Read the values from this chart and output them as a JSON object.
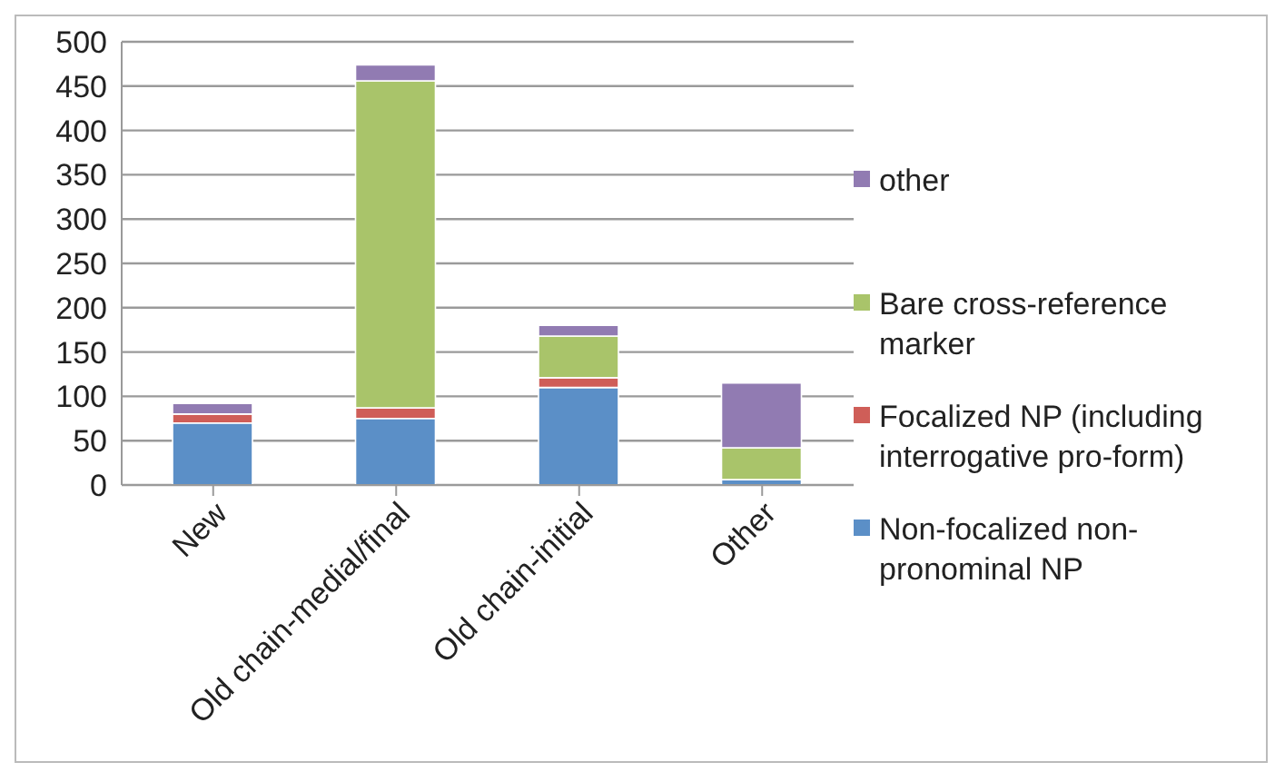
{
  "chart_data": {
    "type": "bar",
    "stacked": true,
    "categories": [
      "New",
      "Old chain-medial/final",
      "Old chain-initial",
      "Other"
    ],
    "series": [
      {
        "name": "Non-focalized non-pronominal NP",
        "color": "#5b8fc7",
        "values": [
          70,
          75,
          110,
          6
        ]
      },
      {
        "name": "Focalized NP (including interrogative pro-form)",
        "color": "#cf5e58",
        "values": [
          10,
          12,
          11,
          null
        ]
      },
      {
        "name": "Bare cross-reference marker",
        "color": "#a9c46a",
        "values": [
          0,
          369,
          47,
          36
        ]
      },
      {
        "name": "other",
        "color": "#917bb2",
        "values": [
          12,
          18,
          12,
          73
        ]
      }
    ],
    "ylim": [
      0,
      500
    ],
    "yticks": [
      0,
      50,
      100,
      150,
      200,
      250,
      300,
      350,
      400,
      450,
      500
    ],
    "grid": "y",
    "legend": "right"
  }
}
